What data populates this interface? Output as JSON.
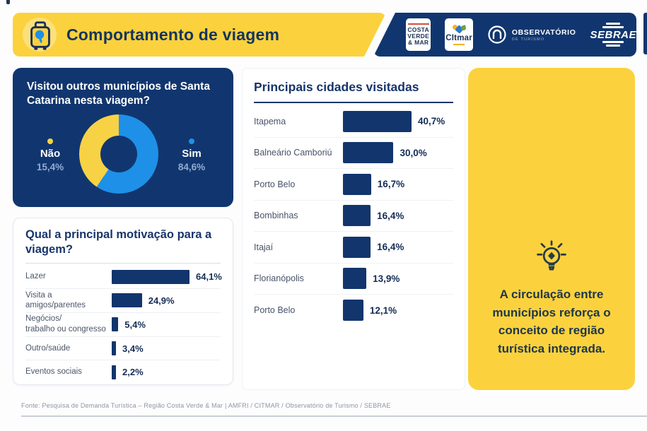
{
  "header": {
    "title": "Comportamento de viagem",
    "logos": {
      "costa_verde": {
        "line1": "COSTA",
        "line2": "VERDE",
        "line3": "& MAR"
      },
      "citmar": {
        "label": "CItmar"
      },
      "observatorio": {
        "label": "OBSERVATÓRIO",
        "sublabel": "DE TURISMO"
      },
      "sebrae": {
        "label": "SEBRAE"
      }
    }
  },
  "chart_data": [
    {
      "type": "pie",
      "title": "Visitou outros municípios de Santa Catarina nesta viagem?",
      "labels": [
        "Sim",
        "Não"
      ],
      "values": [
        84.6,
        15.4
      ],
      "value_labels": [
        "84,6%",
        "15,4%"
      ],
      "colors": [
        "#1e90e8",
        "#f8d245"
      ],
      "donut": true,
      "legend_position": "sides"
    },
    {
      "type": "bar",
      "title": "Qual a principal motivação para a viagem?",
      "orientation": "horizontal",
      "categories": [
        "Lazer",
        "Visita a amigos/parentes",
        "Negócios/trabalho ou congresso",
        "Outro/saúde",
        "Eventos sociais"
      ],
      "display_lines": [
        [
          "Lazer"
        ],
        [
          "Visita a",
          "amigos/parentes"
        ],
        [
          "Negócios/",
          "trabalho ou congresso"
        ],
        [
          "Outro/saúde"
        ],
        [
          "Eventos sociais"
        ]
      ],
      "values": [
        64.1,
        24.9,
        5.4,
        3.4,
        2.2
      ],
      "value_labels": [
        "64,1%",
        "24,9%",
        "5,4%",
        "3,4%",
        "2,2%"
      ],
      "bar_color": "#12356d",
      "xlim": [
        0,
        70
      ],
      "grid": false
    },
    {
      "type": "bar",
      "title": "Principais cidades visitadas",
      "orientation": "horizontal",
      "categories": [
        "Itapema",
        "Balneário Camboriú",
        "Porto Belo",
        "Bombinhas",
        "Itajaí",
        "Florianópolis",
        "Porto Belo"
      ],
      "display_lines": [
        [
          "Itapema"
        ],
        [
          "Balneário Camboriú"
        ],
        [
          "Porto Belo"
        ],
        [
          "Bombinhas"
        ],
        [
          "Itajaí"
        ],
        [
          "Florianópolis"
        ],
        [
          "Porto Belo"
        ]
      ],
      "values": [
        40.7,
        30.0,
        16.7,
        16.4,
        16.4,
        13.9,
        12.1
      ],
      "value_labels": [
        "40,7%",
        "30,0%",
        "16,7%",
        "16,4%",
        "16,4%",
        "13,9%",
        "12,1%"
      ],
      "bar_color": "#12356d",
      "xlim": [
        0,
        45
      ],
      "grid": false
    }
  ],
  "insight_card": {
    "text": "A circulação entre municípios reforça o conceito de região turística integrada."
  },
  "footer": {
    "source": "Fonte: Pesquisa de Demanda Turística – Região Costa Verde & Mar | AMFRI / CITMAR / Observatório de Turismo / SEBRAE"
  },
  "colors": {
    "accent_yellow": "#fbd23d",
    "navy": "#11366f",
    "bar_navy": "#12356d",
    "chart_blue": "#1e90e8",
    "chart_yellow": "#f8d245",
    "title_navy": "#17356b"
  }
}
